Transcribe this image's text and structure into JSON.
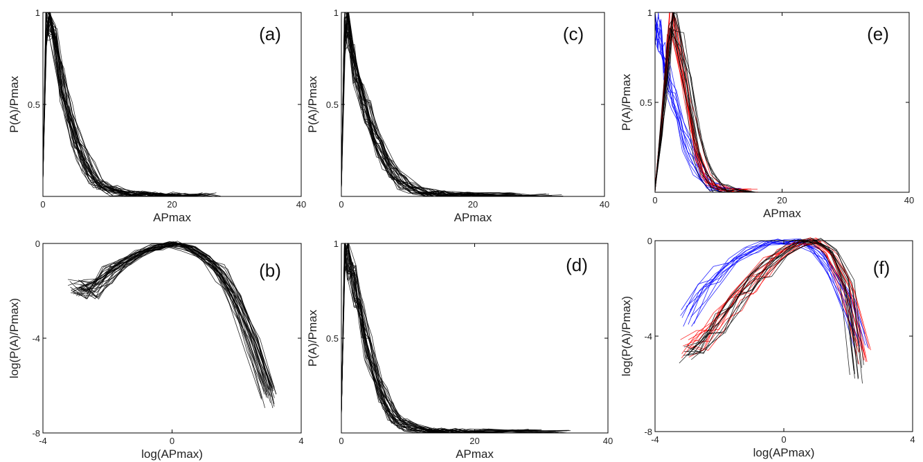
{
  "chart_data": [
    {
      "panel": "(a)",
      "type": "line",
      "xlabel": "APmax",
      "ylabel": "P(A)/Pmax",
      "xlim": [
        0,
        40
      ],
      "ylim": [
        0,
        1
      ],
      "xticks": [
        "0",
        "20",
        "40"
      ],
      "yticks": [
        "0.5",
        "1"
      ],
      "curve_count": 25,
      "series": [
        {
          "name": "",
          "color": "#000000",
          "x": [
            0,
            0.5,
            1,
            2,
            3,
            4,
            5,
            6,
            7,
            8,
            9,
            10,
            12,
            14,
            16,
            18,
            20,
            22,
            24
          ],
          "y": [
            0.1,
            0.95,
            1.0,
            0.82,
            0.62,
            0.45,
            0.33,
            0.23,
            0.15,
            0.09,
            0.06,
            0.04,
            0.02,
            0.012,
            0.008,
            0.005,
            0.003,
            0.002,
            0.001
          ]
        }
      ]
    },
    {
      "panel": "(b)",
      "type": "line",
      "xlabel": "log(APmax)",
      "ylabel": "log(P(A)/Pmax)",
      "xlim": [
        -4,
        4
      ],
      "ylim": [
        -8,
        0
      ],
      "xticks": [
        "-4",
        "0",
        "4"
      ],
      "yticks": [
        "-8",
        "-4",
        "0"
      ],
      "curve_count": 25,
      "series": [
        {
          "name": "",
          "color": "#000000",
          "x": [
            -3,
            -2.5,
            -2,
            -1.5,
            -1,
            -0.5,
            0,
            0.5,
            1,
            1.5,
            2,
            2.5,
            3
          ],
          "y": [
            -1.8,
            -1.9,
            -1.3,
            -0.8,
            -0.4,
            -0.15,
            0,
            -0.2,
            -0.6,
            -1.3,
            -2.5,
            -4.2,
            -6.5
          ]
        }
      ]
    },
    {
      "panel": "(c)",
      "type": "line",
      "xlabel": "APmax",
      "ylabel": "P(A)/Pmax",
      "xlim": [
        0,
        40
      ],
      "ylim": [
        0,
        1
      ],
      "xticks": [
        "0",
        "20",
        "40"
      ],
      "yticks": [
        "0.5",
        "1"
      ],
      "curve_count": 25,
      "series": [
        {
          "name": "",
          "color": "#000000",
          "x": [
            0,
            0.5,
            1,
            2,
            3,
            4,
            5,
            6,
            7,
            8,
            9,
            10,
            12,
            14,
            16,
            18,
            20,
            25,
            30
          ],
          "y": [
            0.05,
            0.9,
            0.95,
            0.72,
            0.58,
            0.45,
            0.35,
            0.26,
            0.19,
            0.13,
            0.09,
            0.06,
            0.03,
            0.018,
            0.01,
            0.006,
            0.004,
            0.002,
            0.001
          ]
        }
      ]
    },
    {
      "panel": "(d)",
      "type": "line",
      "xlabel": "APmax",
      "ylabel": "P(A)/Pmax",
      "xlim": [
        0,
        40
      ],
      "ylim": [
        0,
        1
      ],
      "xticks": [
        "0",
        "20",
        "40"
      ],
      "yticks": [
        "0.5",
        "1"
      ],
      "curve_count": 25,
      "series": [
        {
          "name": "",
          "color": "#000000",
          "x": [
            0,
            0.5,
            1,
            2,
            3,
            4,
            5,
            6,
            7,
            8,
            9,
            10,
            12,
            14,
            16,
            18,
            20,
            25,
            30
          ],
          "y": [
            0.1,
            0.95,
            0.92,
            0.78,
            0.6,
            0.44,
            0.31,
            0.21,
            0.13,
            0.08,
            0.05,
            0.03,
            0.015,
            0.008,
            0.005,
            0.003,
            0.002,
            0.001,
            0.0005
          ]
        }
      ]
    },
    {
      "panel": "(e)",
      "type": "line",
      "xlabel": "APmax",
      "ylabel": "P(A)/Pmax",
      "xlim": [
        0,
        40
      ],
      "ylim": [
        0,
        1
      ],
      "xticks": [
        "0",
        "20",
        "40"
      ],
      "yticks": [
        "0.5",
        "1"
      ],
      "curve_count": 20,
      "series": [
        {
          "name": "",
          "color": "#0000ff",
          "x": [
            0,
            0.5,
            1,
            1.5,
            2,
            3,
            4,
            5,
            6,
            7,
            8,
            9,
            10,
            11,
            12
          ],
          "y": [
            0.9,
            0.92,
            0.85,
            0.75,
            0.65,
            0.5,
            0.38,
            0.27,
            0.18,
            0.11,
            0.06,
            0.03,
            0.015,
            0.007,
            0.003
          ]
        },
        {
          "name": "",
          "color": "#ff0000",
          "x": [
            0,
            1,
            2,
            2.5,
            3,
            4,
            5,
            6,
            7,
            8,
            9,
            10,
            12,
            14,
            16
          ],
          "y": [
            0.02,
            0.35,
            0.75,
            0.95,
            0.97,
            0.78,
            0.57,
            0.37,
            0.22,
            0.12,
            0.06,
            0.03,
            0.01,
            0.004,
            0.001
          ]
        },
        {
          "name": "",
          "color": "#000000",
          "x": [
            0,
            1,
            2,
            2.5,
            3,
            4,
            5,
            6,
            7,
            8,
            9,
            10,
            12,
            14
          ],
          "y": [
            0.02,
            0.35,
            0.75,
            0.95,
            0.98,
            0.8,
            0.58,
            0.38,
            0.22,
            0.11,
            0.05,
            0.02,
            0.006,
            0.002
          ]
        }
      ]
    },
    {
      "panel": "(f)",
      "type": "line",
      "xlabel": "log(APmax)",
      "ylabel": "log(P(A)/Pmax)",
      "xlim": [
        -4,
        4
      ],
      "ylim": [
        -8,
        0
      ],
      "xticks": [
        "-4",
        "0",
        "4"
      ],
      "yticks": [
        "-8",
        "-4",
        "0"
      ],
      "curve_count": 20,
      "series": [
        {
          "name": "",
          "color": "#0000ff",
          "x": [
            -3,
            -2.5,
            -2,
            -1.5,
            -1,
            -0.5,
            0,
            0.5,
            1,
            1.5,
            2,
            2.4
          ],
          "y": [
            -3.2,
            -2.2,
            -1.4,
            -0.8,
            -0.4,
            -0.15,
            -0.05,
            -0.05,
            -0.4,
            -1.2,
            -2.6,
            -4.3
          ]
        },
        {
          "name": "",
          "color": "#ff0000",
          "x": [
            -3,
            -2.5,
            -2,
            -1.5,
            -1,
            -0.5,
            0,
            0.5,
            1,
            1.5,
            2,
            2.5
          ],
          "y": [
            -4.6,
            -4.2,
            -3.3,
            -2.5,
            -1.8,
            -1.1,
            -0.5,
            -0.1,
            0,
            -0.6,
            -2.2,
            -4.8
          ]
        },
        {
          "name": "",
          "color": "#000000",
          "x": [
            -3,
            -2.5,
            -2,
            -1.5,
            -1,
            -0.5,
            0,
            0.5,
            1,
            1.5,
            2,
            2.3
          ],
          "y": [
            -4.7,
            -4.3,
            -3.5,
            -2.6,
            -1.8,
            -1.1,
            -0.5,
            -0.1,
            0,
            -0.4,
            -2.0,
            -5.6
          ]
        }
      ]
    }
  ]
}
